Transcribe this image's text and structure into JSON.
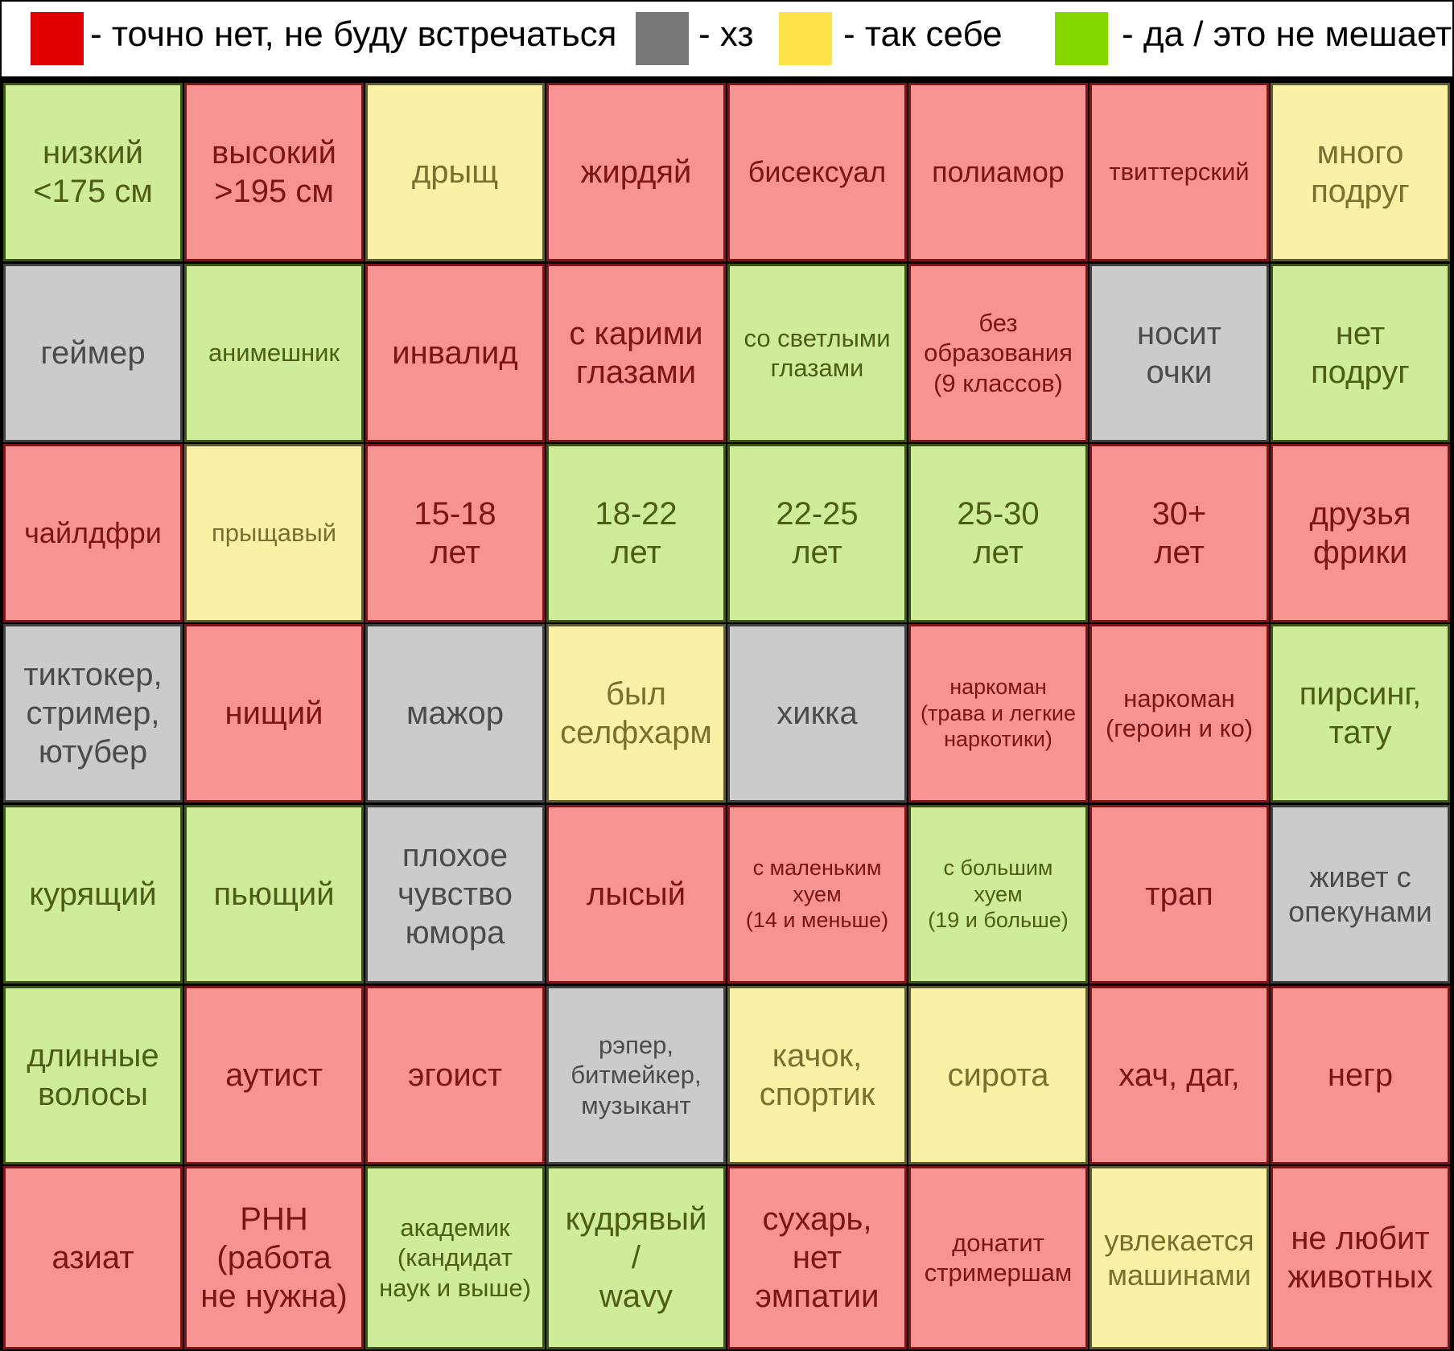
{
  "colors": {
    "red": "#e10000",
    "gray": "#777777",
    "yellow": "#ffe24a",
    "green": "#86d900"
  },
  "legend": [
    {
      "color": "red",
      "label": "-  точно нет, не буду встречаться"
    },
    {
      "color": "gray",
      "label": "-  хз"
    },
    {
      "color": "yellow",
      "label": "-  так себе"
    },
    {
      "color": "green",
      "label": "-  да / это не мешает"
    }
  ],
  "rows": [
    [
      {
        "text": "низкий\n<175 см",
        "rating": "green",
        "size": "l"
      },
      {
        "text": "высокий\n>195 см",
        "rating": "red",
        "size": "l"
      },
      {
        "text": "дрыщ",
        "rating": "yellow",
        "size": "l"
      },
      {
        "text": "жирдяй",
        "rating": "red",
        "size": "l"
      },
      {
        "text": "бисексуал",
        "rating": "red",
        "size": "m"
      },
      {
        "text": "полиамор",
        "rating": "red",
        "size": "m"
      },
      {
        "text": "твиттерский",
        "rating": "red",
        "size": "s"
      },
      {
        "text": "много\nподруг",
        "rating": "yellow",
        "size": "l"
      }
    ],
    [
      {
        "text": "геймер",
        "rating": "gray",
        "size": "l"
      },
      {
        "text": "анимешник",
        "rating": "green",
        "size": "s"
      },
      {
        "text": "инвалид",
        "rating": "red",
        "size": "l"
      },
      {
        "text": "с карими\nглазами",
        "rating": "red",
        "size": "l"
      },
      {
        "text": "со светлыми\nглазами",
        "rating": "green",
        "size": "s"
      },
      {
        "text": "без\nобразования\n(9 классов)",
        "rating": "red",
        "size": "s"
      },
      {
        "text": "носит\nочки",
        "rating": "gray",
        "size": "l"
      },
      {
        "text": "нет\nподруг",
        "rating": "green",
        "size": "l"
      }
    ],
    [
      {
        "text": "чайлдфри",
        "rating": "red",
        "size": "m"
      },
      {
        "text": "прыщавый",
        "rating": "yellow",
        "size": "s"
      },
      {
        "text": "15-18\nлет",
        "rating": "red",
        "size": "l"
      },
      {
        "text": "18-22\nлет",
        "rating": "green",
        "size": "l"
      },
      {
        "text": "22-25\nлет",
        "rating": "green",
        "size": "l"
      },
      {
        "text": "25-30\nлет",
        "rating": "green",
        "size": "l"
      },
      {
        "text": "30+\nлет",
        "rating": "red",
        "size": "l"
      },
      {
        "text": "друзья\nфрики",
        "rating": "red",
        "size": "l"
      }
    ],
    [
      {
        "text": "тиктокер,\nстример,\nютубер",
        "rating": "gray",
        "size": "l"
      },
      {
        "text": "нищий",
        "rating": "red",
        "size": "l"
      },
      {
        "text": "мажор",
        "rating": "gray",
        "size": "l"
      },
      {
        "text": "был\nселфхарм",
        "rating": "yellow",
        "size": "l"
      },
      {
        "text": "хикка",
        "rating": "gray",
        "size": "l"
      },
      {
        "text": "наркоман\n(трава и легкие\nнаркотики)",
        "rating": "red",
        "size": "xs"
      },
      {
        "text": "наркоман\n(героин и ко)",
        "rating": "red",
        "size": "s"
      },
      {
        "text": "пирсинг,\nтату",
        "rating": "green",
        "size": "l"
      }
    ],
    [
      {
        "text": "курящий",
        "rating": "green",
        "size": "l"
      },
      {
        "text": "пьющий",
        "rating": "green",
        "size": "l"
      },
      {
        "text": "плохое\nчувство\nюмора",
        "rating": "gray",
        "size": "l"
      },
      {
        "text": "лысый",
        "rating": "red",
        "size": "l"
      },
      {
        "text": "с маленьким\nхуем\n(14 и меньше)",
        "rating": "red",
        "size": "xs"
      },
      {
        "text": "с большим хуем\n(19 и больше)",
        "rating": "green",
        "size": "xs"
      },
      {
        "text": "трап",
        "rating": "red",
        "size": "l"
      },
      {
        "text": "живет с\nопекунами",
        "rating": "gray",
        "size": "m"
      }
    ],
    [
      {
        "text": "длинные\nволосы",
        "rating": "green",
        "size": "l"
      },
      {
        "text": "аутист",
        "rating": "red",
        "size": "l"
      },
      {
        "text": "эгоист",
        "rating": "red",
        "size": "l"
      },
      {
        "text": "рэпер,\nбитмейкер,\nмузыкант",
        "rating": "gray",
        "size": "s"
      },
      {
        "text": "качок,\nспортик",
        "rating": "yellow",
        "size": "l"
      },
      {
        "text": "сирота",
        "rating": "yellow",
        "size": "l"
      },
      {
        "text": "хач, даг,",
        "rating": "red",
        "size": "l"
      },
      {
        "text": "негр",
        "rating": "red",
        "size": "l"
      }
    ],
    [
      {
        "text": "азиат",
        "rating": "red",
        "size": "l"
      },
      {
        "text": "РНН\n(работа\nне нужна)",
        "rating": "red",
        "size": "l"
      },
      {
        "text": "академик\n(кандидат\nнаук и выше)",
        "rating": "green",
        "size": "s"
      },
      {
        "text": "кудрявый\n/\nwavy",
        "rating": "green",
        "size": "l"
      },
      {
        "text": "сухарь,\nнет\nэмпатии",
        "rating": "red",
        "size": "l"
      },
      {
        "text": "донатит\nстримершам",
        "rating": "red",
        "size": "s"
      },
      {
        "text": "увлекается\nмашинами",
        "rating": "yellow",
        "size": "m"
      },
      {
        "text": "не любит\nживотных",
        "rating": "red",
        "size": "l"
      }
    ]
  ]
}
